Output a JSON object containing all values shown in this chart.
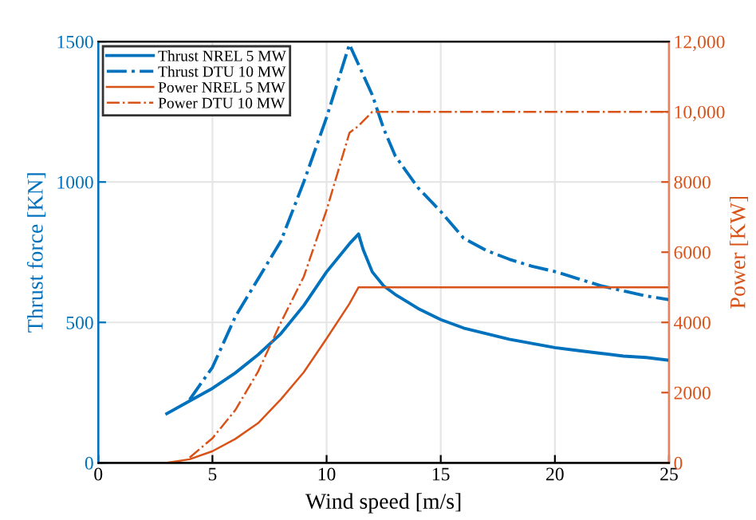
{
  "chart_data": {
    "type": "line",
    "xlabel": "Wind speed [m/s]",
    "ylabel": "Thrust force [KN]",
    "y2label": "Power [KW]",
    "xlim": [
      0,
      25
    ],
    "xticks": [
      0,
      5,
      10,
      15,
      20,
      25
    ],
    "ylim": [
      0,
      1500
    ],
    "yticks": [
      0,
      500,
      1000,
      1500
    ],
    "y2lim": [
      0,
      12000
    ],
    "y2ticks": [
      0,
      2000,
      4000,
      6000,
      8000,
      {
        "value": 10000,
        "label": "10,000"
      },
      {
        "value": 12000,
        "label": "12,000"
      }
    ],
    "grid": true,
    "legend": "top left",
    "series": [
      {
        "name": "Thrust NREL 5 MW",
        "color": "#0072bd",
        "line_style": "solid",
        "x": [
          3,
          4,
          5,
          6,
          7,
          8,
          9,
          10,
          11,
          11.4,
          11.6,
          12,
          12.5,
          13,
          14,
          15,
          16,
          17,
          18,
          19,
          20,
          21,
          22,
          23,
          24,
          25
        ],
        "values": [
          175,
          220,
          265,
          320,
          385,
          460,
          560,
          680,
          780,
          815,
          760,
          680,
          630,
          600,
          550,
          510,
          480,
          460,
          440,
          425,
          410,
          400,
          390,
          380,
          375,
          365
        ]
      },
      {
        "name": "Thrust DTU 10 MW",
        "color": "#0072bd",
        "line_style": "dashdot",
        "x": [
          4,
          5,
          6,
          7,
          8,
          9,
          10,
          11,
          11.5,
          12,
          12.5,
          13,
          14,
          15,
          16,
          17,
          18,
          19,
          20,
          21,
          22,
          23,
          24,
          25
        ],
        "values": [
          225,
          340,
          520,
          655,
          790,
          1000,
          1230,
          1490,
          1400,
          1310,
          1190,
          1094,
          980,
          895,
          800,
          756,
          725,
          700,
          681,
          656,
          631,
          612,
          594,
          581
        ]
      },
      {
        "name": "Power NREL 5 MW",
        "color": "#d95319",
        "line_style": "solid",
        "axis": "y2",
        "x": [
          3,
          4,
          5,
          6,
          7,
          8,
          9,
          10,
          11,
          11.4,
          25
        ],
        "values": [
          0,
          100,
          330,
          680,
          1130,
          1810,
          2580,
          3540,
          4530,
          5000,
          5000
        ]
      },
      {
        "name": "Power DTU 10 MW",
        "color": "#d95319",
        "line_style": "dashdot",
        "axis": "y2",
        "x": [
          4,
          5,
          6,
          7,
          8,
          9,
          10,
          11,
          11.4,
          12,
          25
        ],
        "values": [
          150,
          700,
          1500,
          2600,
          4000,
          5300,
          7200,
          9400,
          9600,
          10000,
          10000
        ]
      }
    ]
  }
}
